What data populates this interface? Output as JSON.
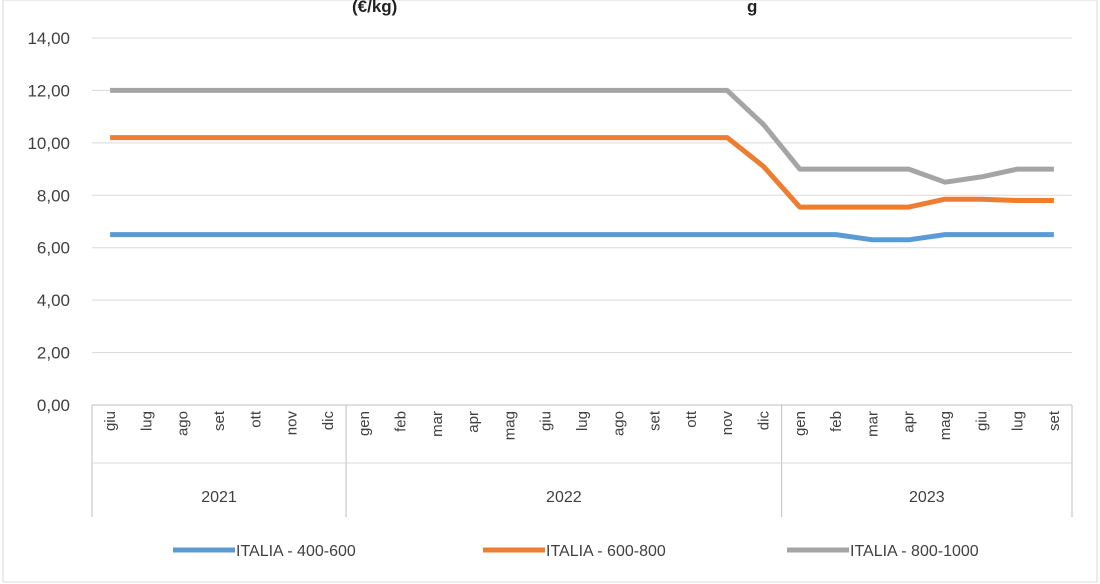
{
  "title_fragments": [
    "(€/kg)",
    "g"
  ],
  "chart_data": {
    "type": "line",
    "categories": [
      "giu",
      "lug",
      "ago",
      "set",
      "ott",
      "nov",
      "dic",
      "gen",
      "feb",
      "mar",
      "apr",
      "mag",
      "giu",
      "lug",
      "ago",
      "set",
      "ott",
      "nov",
      "dic",
      "gen",
      "feb",
      "mar",
      "apr",
      "mag",
      "giu",
      "lug",
      "set"
    ],
    "years": [
      {
        "label": "2021",
        "start": 0,
        "end": 6
      },
      {
        "label": "2022",
        "start": 7,
        "end": 18
      },
      {
        "label": "2023",
        "start": 19,
        "end": 26
      }
    ],
    "ylim": [
      0,
      14
    ],
    "yticks": [
      "0,00",
      "2,00",
      "4,00",
      "6,00",
      "8,00",
      "10,00",
      "12,00",
      "14,00"
    ],
    "ytick_values": [
      0,
      2,
      4,
      6,
      8,
      10,
      12,
      14
    ],
    "grid": true,
    "legend_position": "bottom",
    "series": [
      {
        "name": "ITALIA - 400-600",
        "color": "#5B9BD5",
        "values": [
          6.5,
          6.5,
          6.5,
          6.5,
          6.5,
          6.5,
          6.5,
          6.5,
          6.5,
          6.5,
          6.5,
          6.5,
          6.5,
          6.5,
          6.5,
          6.5,
          6.5,
          6.5,
          6.5,
          6.5,
          6.5,
          6.3,
          6.3,
          6.5,
          6.5,
          6.5,
          6.5
        ]
      },
      {
        "name": "ITALIA - 600-800",
        "color": "#ED7D31",
        "values": [
          10.2,
          10.2,
          10.2,
          10.2,
          10.2,
          10.2,
          10.2,
          10.2,
          10.2,
          10.2,
          10.2,
          10.2,
          10.2,
          10.2,
          10.2,
          10.2,
          10.2,
          10.2,
          9.1,
          7.55,
          7.55,
          7.55,
          7.55,
          7.85,
          7.85,
          7.8,
          7.8
        ]
      },
      {
        "name": "ITALIA - 800-1000",
        "color": "#A5A5A5",
        "values": [
          12.0,
          12.0,
          12.0,
          12.0,
          12.0,
          12.0,
          12.0,
          12.0,
          12.0,
          12.0,
          12.0,
          12.0,
          12.0,
          12.0,
          12.0,
          12.0,
          12.0,
          12.0,
          10.7,
          9.0,
          9.0,
          9.0,
          9.0,
          8.5,
          8.7,
          9.0,
          9.0
        ]
      }
    ]
  }
}
